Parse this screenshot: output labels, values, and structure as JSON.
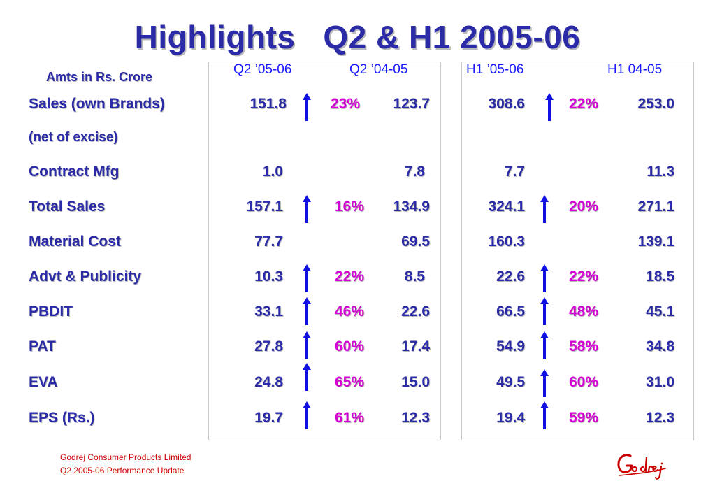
{
  "title": "Highlights   Q2 & H1 2005-06",
  "units_label": "Amts in Rs. Crore",
  "columns": {
    "q2_cur": "Q2 ’05-06",
    "q2_prev": "Q2 ’04-05",
    "h1_cur": "H1 ’05-06",
    "h1_prev": "H1 04-05"
  },
  "rows": [
    {
      "label": "Sales (own Brands)",
      "q2_cur": "151.8",
      "q2_growth": "23%",
      "q2_prev": "123.7",
      "h1_cur": "308.6",
      "h1_growth": "22%",
      "h1_prev": "253.0"
    },
    {
      "label": "(net of excise)"
    },
    {
      "label": "Contract Mfg",
      "q2_cur": "1.0",
      "q2_growth": "",
      "q2_prev": "7.8",
      "h1_cur": "7.7",
      "h1_growth": "",
      "h1_prev": "11.3"
    },
    {
      "label": "Total Sales",
      "q2_cur": "157.1",
      "q2_growth": "16%",
      "q2_prev": "134.9",
      "h1_cur": "324.1",
      "h1_growth": "20%",
      "h1_prev": "271.1"
    },
    {
      "label": "Material Cost",
      "q2_cur": "77.7",
      "q2_growth": "",
      "q2_prev": "69.5",
      "h1_cur": "160.3",
      "h1_growth": "",
      "h1_prev": "139.1"
    },
    {
      "label": "Advt & Publicity",
      "q2_cur": "10.3",
      "q2_growth": "22%",
      "q2_prev": "8.5",
      "h1_cur": "22.6",
      "h1_growth": "22%",
      "h1_prev": "18.5"
    },
    {
      "label": "PBDIT",
      "q2_cur": "33.1",
      "q2_growth": "46%",
      "q2_prev": "22.6",
      "h1_cur": "66.5",
      "h1_growth": "48%",
      "h1_prev": "45.1"
    },
    {
      "label": "PAT",
      "q2_cur": "27.8",
      "q2_growth": "60%",
      "q2_prev": "17.4",
      "h1_cur": "54.9",
      "h1_growth": "58%",
      "h1_prev": "34.8"
    },
    {
      "label": "EVA",
      "q2_cur": "24.8",
      "q2_growth": "65%",
      "q2_prev": "15.0",
      "h1_cur": "49.5",
      "h1_growth": "60%",
      "h1_prev": "31.0"
    },
    {
      "label": "EPS (Rs.)",
      "q2_cur": "19.7",
      "q2_growth": "61%",
      "q2_prev": "12.3",
      "h1_cur": "19.4",
      "h1_growth": "59%",
      "h1_prev": "12.3"
    }
  ],
  "footer": {
    "company": "Godrej Consumer Products Limited",
    "subtitle": "Q2 2005-06 Performance Update"
  },
  "logo": {
    "text": "Godrej",
    "color": "#cc0000"
  },
  "colors": {
    "text": "#2b2ba8",
    "header": "#1a1aff",
    "growth": "#d400d4",
    "arrow": "#1010e0",
    "footer": "#cc0000"
  },
  "icons": {
    "growth_arrow": "arrow-up-icon"
  }
}
